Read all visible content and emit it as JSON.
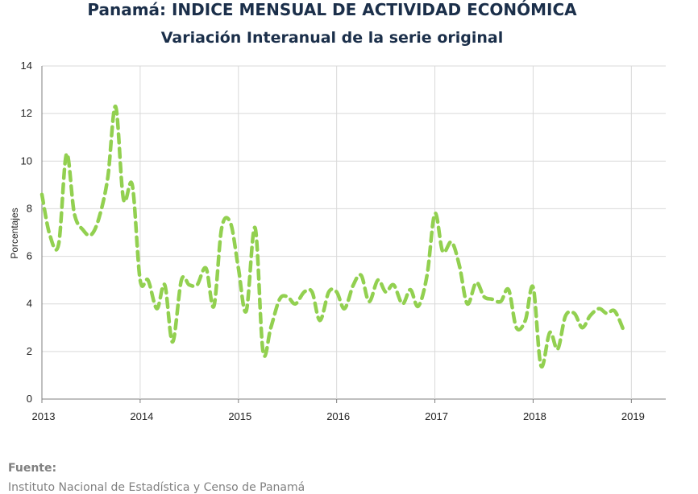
{
  "chart_data": {
    "type": "line",
    "title": "Panamá: INDICE MENSUAL DE ACTIVIDAD ECONÓMICA",
    "subtitle": "Variación Interanual de la serie original",
    "ylabel": "Porcentajes",
    "xlabel": "",
    "xlim": [
      2013.0,
      2019.35
    ],
    "ylim": [
      0,
      14
    ],
    "x_ticks": [
      "2013",
      "2014",
      "2015",
      "2016",
      "2017",
      "2018",
      "2019"
    ],
    "y_ticks": [
      "0",
      "2",
      "4",
      "6",
      "8",
      "10",
      "12",
      "14"
    ],
    "grid": true,
    "line_color": "#92d050",
    "line_style": "dashed",
    "series": [
      {
        "points": [
          [
            2013.0,
            8.6
          ],
          [
            2013.08,
            6.9
          ],
          [
            2013.17,
            6.5
          ],
          [
            2013.25,
            10.3
          ],
          [
            2013.33,
            7.8
          ],
          [
            2013.42,
            7.1
          ],
          [
            2013.5,
            6.9
          ],
          [
            2013.58,
            7.6
          ],
          [
            2013.67,
            9.3
          ],
          [
            2013.75,
            12.3
          ],
          [
            2013.83,
            8.4
          ],
          [
            2013.92,
            9.0
          ],
          [
            2014.0,
            5.0
          ],
          [
            2014.08,
            5.0
          ],
          [
            2014.17,
            3.8
          ],
          [
            2014.25,
            4.8
          ],
          [
            2014.33,
            2.4
          ],
          [
            2014.42,
            5.0
          ],
          [
            2014.5,
            4.8
          ],
          [
            2014.58,
            4.8
          ],
          [
            2014.67,
            5.5
          ],
          [
            2014.75,
            3.9
          ],
          [
            2014.83,
            7.2
          ],
          [
            2014.92,
            7.4
          ],
          [
            2015.0,
            5.5
          ],
          [
            2015.08,
            3.7
          ],
          [
            2015.17,
            7.2
          ],
          [
            2015.25,
            2.0
          ],
          [
            2015.33,
            3.0
          ],
          [
            2015.42,
            4.2
          ],
          [
            2015.5,
            4.3
          ],
          [
            2015.58,
            4.0
          ],
          [
            2015.67,
            4.5
          ],
          [
            2015.75,
            4.5
          ],
          [
            2015.83,
            3.3
          ],
          [
            2015.92,
            4.5
          ],
          [
            2016.0,
            4.5
          ],
          [
            2016.08,
            3.8
          ],
          [
            2016.17,
            4.8
          ],
          [
            2016.25,
            5.2
          ],
          [
            2016.33,
            4.1
          ],
          [
            2016.42,
            5.0
          ],
          [
            2016.5,
            4.5
          ],
          [
            2016.58,
            4.8
          ],
          [
            2016.67,
            4.0
          ],
          [
            2016.75,
            4.6
          ],
          [
            2016.83,
            3.9
          ],
          [
            2016.92,
            5.2
          ],
          [
            2017.0,
            7.8
          ],
          [
            2017.08,
            6.2
          ],
          [
            2017.17,
            6.6
          ],
          [
            2017.25,
            5.6
          ],
          [
            2017.33,
            4.0
          ],
          [
            2017.42,
            4.9
          ],
          [
            2017.5,
            4.3
          ],
          [
            2017.58,
            4.2
          ],
          [
            2017.67,
            4.1
          ],
          [
            2017.75,
            4.6
          ],
          [
            2017.83,
            3.0
          ],
          [
            2017.92,
            3.3
          ],
          [
            2018.0,
            4.7
          ],
          [
            2018.08,
            1.4
          ],
          [
            2018.17,
            2.8
          ],
          [
            2018.25,
            2.1
          ],
          [
            2018.33,
            3.5
          ],
          [
            2018.42,
            3.6
          ],
          [
            2018.5,
            3.0
          ],
          [
            2018.58,
            3.5
          ],
          [
            2018.67,
            3.8
          ],
          [
            2018.75,
            3.6
          ],
          [
            2018.83,
            3.7
          ],
          [
            2018.92,
            2.9
          ]
        ]
      }
    ]
  },
  "source": {
    "heading": "Fuente:",
    "text": "Instituto Nacional de Estadística y Censo de Panamá"
  }
}
